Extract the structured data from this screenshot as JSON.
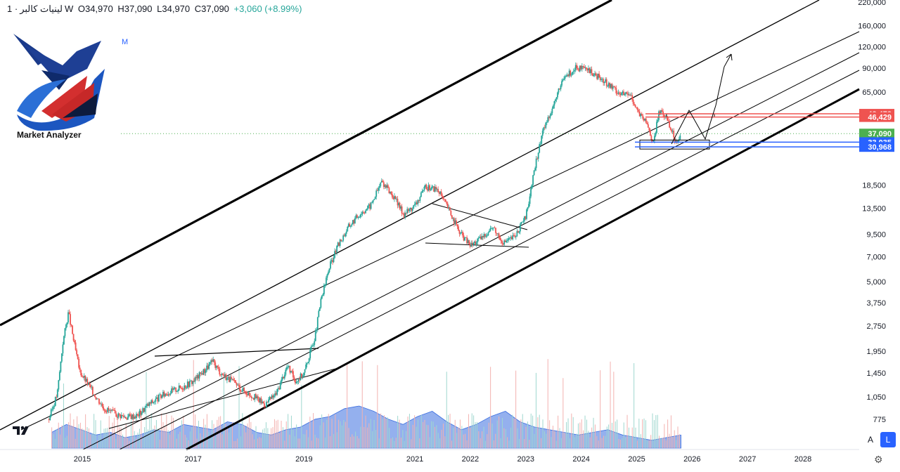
{
  "header": {
    "symbol": "لینیات کالبر",
    "interval": "1W",
    "open": "O34,970",
    "high": "H37,090",
    "low": "L34,970",
    "close": "C37,090",
    "change": "+3,060 (+8.99%)"
  },
  "logo": {
    "brand": "Market Analyzer",
    "m_label": "M"
  },
  "buttons": {
    "auto": "A",
    "log": "L"
  },
  "colors": {
    "up": "#26a69a",
    "down": "#ef5350",
    "price_label": "#4caf50",
    "red_label": "#ef5350",
    "blue_label": "#2962ff",
    "volume": "#3d6fe0"
  },
  "chart_data": {
    "type": "candlestick",
    "scale": "log",
    "x_axis_years": [
      "2015",
      "2017",
      "2019",
      "2021",
      "2022",
      "2023",
      "2024",
      "2025",
      "2026",
      "2027",
      "2028"
    ],
    "y_axis_ticks": [
      "220,000",
      "160,000",
      "120,000",
      "90,000",
      "65,000",
      "48,478",
      "46,429",
      "37,090",
      "33,035",
      "30,968",
      "18,500",
      "13,500",
      "9,500",
      "7,000",
      "5,000",
      "3,750",
      "2,750",
      "1,950",
      "1,450",
      "1,050",
      "775"
    ],
    "price_labels": [
      {
        "value": "48,478",
        "color": "#ef5350"
      },
      {
        "value": "46,429",
        "color": "#ef5350"
      },
      {
        "value": "37,090",
        "color": "#4caf50"
      },
      {
        "value": "33,035",
        "color": "#2962ff"
      },
      {
        "value": "30,968",
        "color": "#2962ff"
      }
    ],
    "price_path": [
      [
        2014.4,
        780
      ],
      [
        2014.55,
        1100
      ],
      [
        2014.65,
        2200
      ],
      [
        2014.75,
        3300
      ],
      [
        2014.85,
        2200
      ],
      [
        2014.95,
        1500
      ],
      [
        2015.1,
        1250
      ],
      [
        2015.25,
        1050
      ],
      [
        2015.4,
        900
      ],
      [
        2015.6,
        830
      ],
      [
        2015.8,
        800
      ],
      [
        2016.0,
        820
      ],
      [
        2016.2,
        950
      ],
      [
        2016.5,
        1100
      ],
      [
        2016.8,
        1200
      ],
      [
        2017.0,
        1300
      ],
      [
        2017.2,
        1500
      ],
      [
        2017.35,
        1700
      ],
      [
        2017.5,
        1450
      ],
      [
        2017.7,
        1300
      ],
      [
        2017.9,
        1150
      ],
      [
        2018.1,
        1050
      ],
      [
        2018.3,
        950
      ],
      [
        2018.5,
        1100
      ],
      [
        2018.7,
        1600
      ],
      [
        2018.85,
        1300
      ],
      [
        2019.0,
        1450
      ],
      [
        2019.2,
        2400
      ],
      [
        2019.3,
        3800
      ],
      [
        2019.45,
        6000
      ],
      [
        2019.6,
        8000
      ],
      [
        2019.8,
        10500
      ],
      [
        2020.0,
        12500
      ],
      [
        2020.2,
        14000
      ],
      [
        2020.4,
        19500
      ],
      [
        2020.6,
        16000
      ],
      [
        2020.8,
        12500
      ],
      [
        2021.0,
        14000
      ],
      [
        2021.2,
        18000
      ],
      [
        2021.4,
        17500
      ],
      [
        2021.6,
        13500
      ],
      [
        2021.8,
        9800
      ],
      [
        2022.0,
        8200
      ],
      [
        2022.2,
        9000
      ],
      [
        2022.4,
        10500
      ],
      [
        2022.6,
        8500
      ],
      [
        2022.8,
        9200
      ],
      [
        2023.0,
        12000
      ],
      [
        2023.15,
        22000
      ],
      [
        2023.3,
        38000
      ],
      [
        2023.5,
        55000
      ],
      [
        2023.7,
        80000
      ],
      [
        2023.9,
        90000
      ],
      [
        2024.1,
        88000
      ],
      [
        2024.3,
        80000
      ],
      [
        2024.5,
        72000
      ],
      [
        2024.7,
        64000
      ],
      [
        2024.9,
        62000
      ],
      [
        2025.05,
        48000
      ],
      [
        2025.2,
        42000
      ],
      [
        2025.3,
        32000
      ],
      [
        2025.4,
        50000
      ],
      [
        2025.55,
        46000
      ],
      [
        2025.7,
        33500
      ],
      [
        2025.8,
        37090
      ]
    ],
    "volume_profile": [
      0.3,
      0.45,
      0.35,
      0.25,
      0.3,
      0.2,
      0.25,
      0.35,
      0.3,
      0.45,
      0.4,
      0.35,
      0.5,
      0.45,
      0.3,
      0.25,
      0.35,
      0.4,
      0.55,
      0.6,
      0.75,
      0.8,
      0.7,
      0.55,
      0.45,
      0.6,
      0.7,
      0.5,
      0.35,
      0.45,
      0.6,
      0.7,
      0.5,
      0.4,
      0.35,
      0.3,
      0.25,
      0.3,
      0.35,
      0.25,
      0.2,
      0.15,
      0.2,
      0.25
    ]
  }
}
